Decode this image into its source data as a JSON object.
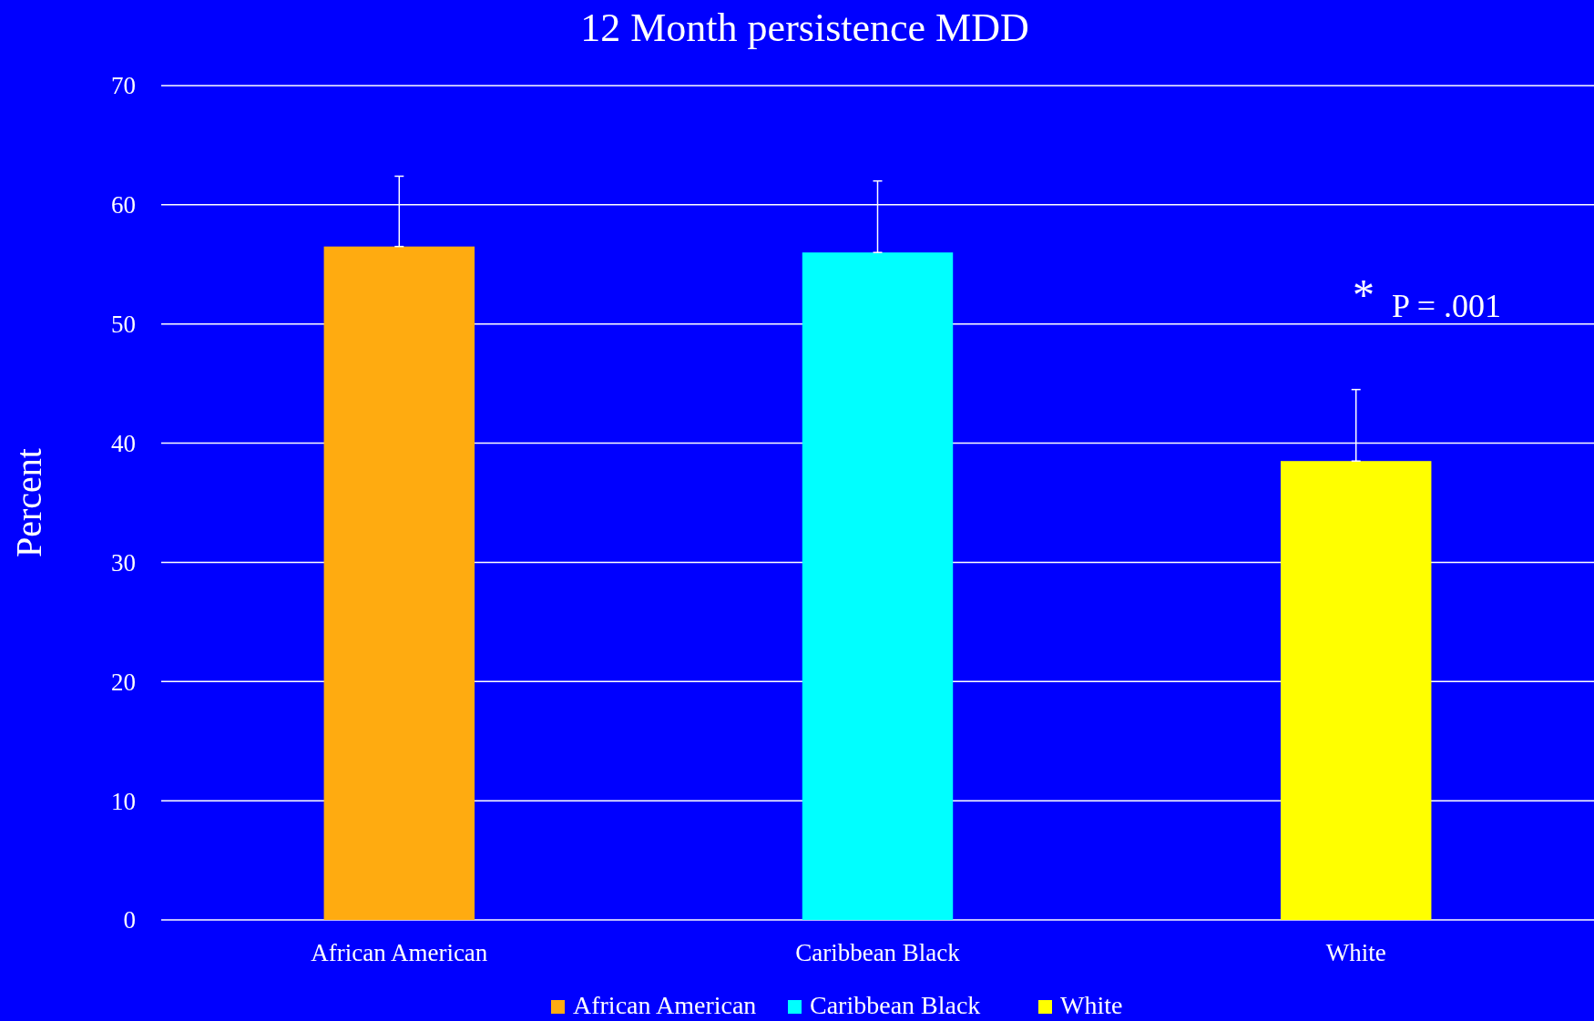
{
  "chart_data": {
    "type": "bar",
    "title": "12 Month persistence MDD",
    "ylabel": "Percent",
    "categories": [
      "African American",
      "Caribbean Black",
      "White"
    ],
    "series": [
      {
        "name": "African American",
        "color": "#ffab10",
        "values": [
          56.5,
          null,
          null
        ],
        "errors": [
          [
            56.5,
            62.4
          ],
          null,
          null
        ]
      },
      {
        "name": "Caribbean Black",
        "color": "#00ffff",
        "values": [
          null,
          56.0,
          null
        ],
        "errors": [
          null,
          [
            56.0,
            62.0
          ],
          null
        ]
      },
      {
        "name": "White",
        "color": "#ffff00",
        "values": [
          null,
          null,
          38.5
        ],
        "errors": [
          null,
          null,
          [
            38.5,
            44.5
          ]
        ]
      }
    ],
    "ylim": [
      0,
      70
    ],
    "yticks": [
      0,
      10,
      20,
      30,
      40,
      50,
      60,
      70
    ],
    "grid": "y",
    "legend": "bottom",
    "annotations": [
      "*",
      "P = .001"
    ]
  }
}
